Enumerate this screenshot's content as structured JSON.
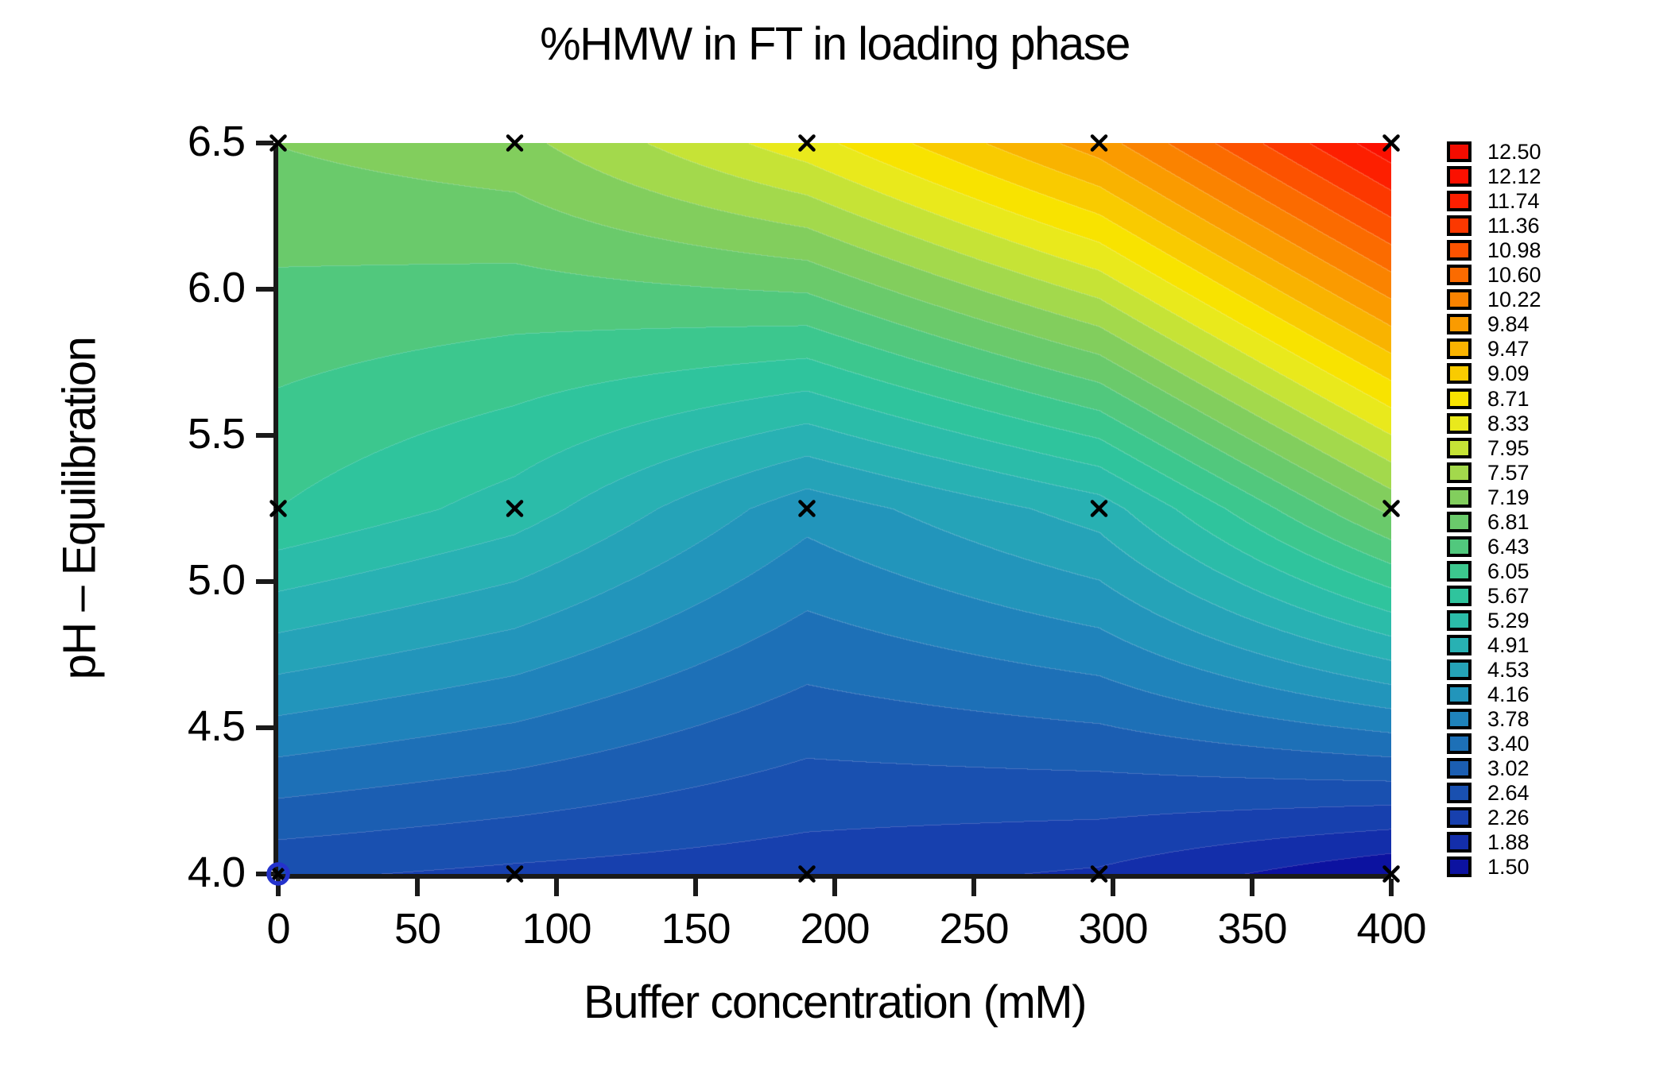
{
  "page": {
    "background": "#ffffff",
    "axis_color": "#1a1a1a",
    "text_color": "#000000"
  },
  "chart_data": {
    "type": "heatmap",
    "variant": "filled-contour",
    "title": "%HMW in FT in loading phase",
    "xlabel": "Buffer concentration (mM)",
    "ylabel": "pH – Equilibration",
    "xlim": [
      0,
      400
    ],
    "ylim": [
      4.0,
      6.5
    ],
    "x_ticks": [
      "0",
      "50",
      "100",
      "150",
      "200",
      "250",
      "300",
      "350",
      "400"
    ],
    "y_ticks": [
      "4.0",
      "4.5",
      "5.0",
      "5.5",
      "6.0",
      "6.5"
    ],
    "grid": false,
    "legend_position": "right",
    "grid_x": [
      0,
      85,
      190,
      295,
      400
    ],
    "grid_y": [
      6.5,
      5.25,
      4.0
    ],
    "z": [
      [
        7.2,
        7.45,
        8.55,
        10.05,
        12.4
      ],
      [
        6.05,
        5.5,
        4.3,
        5.1,
        7.3
      ],
      [
        2.7,
        2.55,
        2.42,
        2.2,
        1.55
      ]
    ],
    "levels": {
      "min": 1.5,
      "max": 12.5,
      "count": 30
    },
    "legend": [
      {
        "label": "12.50",
        "color": "#F20C00"
      },
      {
        "label": "12.12",
        "color": "#FB1000"
      },
      {
        "label": "11.74",
        "color": "#FD1F00"
      },
      {
        "label": "11.36",
        "color": "#FC3800"
      },
      {
        "label": "10.98",
        "color": "#FC5200"
      },
      {
        "label": "10.60",
        "color": "#FB6B00"
      },
      {
        "label": "10.22",
        "color": "#FA8300"
      },
      {
        "label": "9.84",
        "color": "#FA9B00"
      },
      {
        "label": "9.47",
        "color": "#F9B300"
      },
      {
        "label": "9.09",
        "color": "#F9CB00"
      },
      {
        "label": "8.71",
        "color": "#F8E300"
      },
      {
        "label": "8.33",
        "color": "#E9E91C"
      },
      {
        "label": "7.95",
        "color": "#C6E336"
      },
      {
        "label": "7.57",
        "color": "#A3D94C"
      },
      {
        "label": "7.19",
        "color": "#82CE5D"
      },
      {
        "label": "6.81",
        "color": "#6ACA6B"
      },
      {
        "label": "6.43",
        "color": "#51C87D"
      },
      {
        "label": "6.05",
        "color": "#3CC78E"
      },
      {
        "label": "5.67",
        "color": "#2FC49D"
      },
      {
        "label": "5.29",
        "color": "#2BBCA9"
      },
      {
        "label": "4.91",
        "color": "#28B1B3"
      },
      {
        "label": "4.53",
        "color": "#25A3B8"
      },
      {
        "label": "4.16",
        "color": "#2295BB"
      },
      {
        "label": "3.78",
        "color": "#1F83BB"
      },
      {
        "label": "3.40",
        "color": "#1D70B7"
      },
      {
        "label": "3.02",
        "color": "#1B5EB2"
      },
      {
        "label": "2.64",
        "color": "#1950B0"
      },
      {
        "label": "2.26",
        "color": "#1740AE"
      },
      {
        "label": "1.88",
        "color": "#132EAA"
      },
      {
        "label": "1.50",
        "color": "#0C12A0"
      }
    ],
    "markers": {
      "symbol": "x",
      "color": "#000000",
      "x_values": [
        0,
        85,
        190,
        295,
        400
      ],
      "y_values": [
        6.5,
        5.25,
        4.0
      ]
    },
    "highlight_marker": {
      "x": 0,
      "y": 4.0,
      "symbol": "circle-open",
      "color": "#2433CC"
    }
  }
}
